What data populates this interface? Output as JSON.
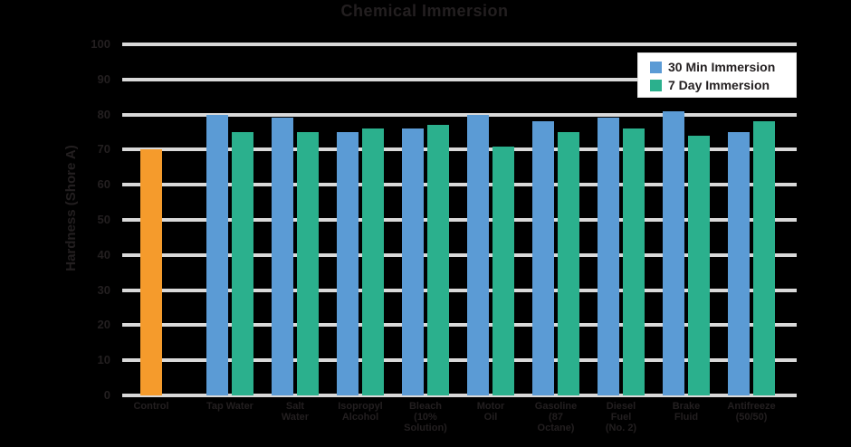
{
  "chart_data": {
    "type": "bar",
    "title": "Chemical Immersion",
    "ylabel": "Hardness (Shore A)",
    "ylim": [
      0,
      100
    ],
    "ytick_step": 10,
    "ytick_labels": [
      "100",
      "90",
      "80",
      "70",
      "60",
      "50",
      "40",
      "30",
      "20",
      "10",
      "0"
    ],
    "grid": true,
    "legend_position": "top-right",
    "categories": [
      "Control",
      "Tap Water",
      "Salt Water",
      "Isopropyl Alcohol",
      "Bleach (10% Solution)",
      "Motor Oil",
      "Gasoline (87 Octane)",
      "Diesel Fuel (No. 2)",
      "Brake Fluid",
      "Antifreeze (50/50)"
    ],
    "category_label_lines": [
      [
        "Control"
      ],
      [
        "Tap Water"
      ],
      [
        "Salt",
        "Water"
      ],
      [
        "Isopropyl",
        "Alcohol"
      ],
      [
        "Bleach",
        "(10%",
        "Solution)"
      ],
      [
        "Motor",
        "Oil"
      ],
      [
        "Gasoline",
        "(87",
        "Octane)"
      ],
      [
        "Diesel",
        "Fuel",
        "(No. 2)"
      ],
      [
        "Brake",
        "Fluid"
      ],
      [
        "Antifreeze",
        "(50/50)"
      ]
    ],
    "series": [
      {
        "name": "Control",
        "color": "#F59B2C",
        "values": [
          70,
          null,
          null,
          null,
          null,
          null,
          null,
          null,
          null,
          null
        ]
      },
      {
        "name": "30 Min Immersion",
        "color": "#5B9BD5",
        "values": [
          null,
          80,
          79,
          75,
          76,
          80,
          78,
          79,
          81,
          75
        ]
      },
      {
        "name": "7 Day Immersion",
        "color": "#2BB08D",
        "values": [
          null,
          75,
          75,
          76,
          77,
          71,
          75,
          76,
          74,
          78
        ]
      }
    ]
  },
  "legend": {
    "items": [
      {
        "label": "30 Min Immersion",
        "color": "#5B9BD5"
      },
      {
        "label": "7 Day Immersion",
        "color": "#2BB08D"
      }
    ]
  },
  "colors": {
    "background": "#000000",
    "gridline": "#D9D9D9",
    "text": "#231F20",
    "legend_background": "#FFFFFF",
    "bar_control": "#F59B2C",
    "bar_30min": "#5B9BD5",
    "bar_7day": "#2BB08D"
  }
}
